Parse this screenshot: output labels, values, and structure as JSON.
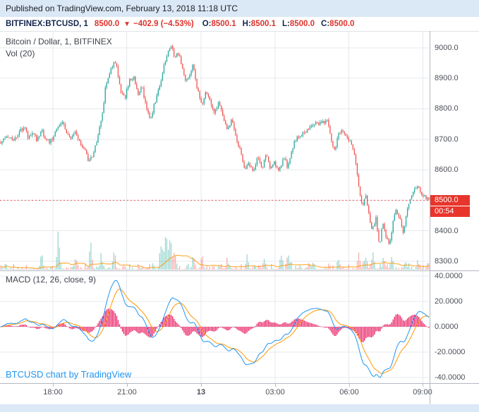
{
  "banner": {
    "published_text": "Published on TradingView.com, February 13, 2018 11:18 UTC"
  },
  "symbol_bar": {
    "symbol": "BITFINEX:BTCUSD, 1",
    "last_price": "8500.0",
    "change_arrow": "▼",
    "change": "−402.9 (−4.53%)",
    "ohlc": [
      {
        "label": "O:",
        "value": "8500.1"
      },
      {
        "label": "H:",
        "value": "8500.1"
      },
      {
        "label": "L:",
        "value": "8500.0"
      },
      {
        "label": "C:",
        "value": "8500.0"
      }
    ]
  },
  "main_pane": {
    "legend_line1": "Bitcoin / Dollar, 1, BITFINEX",
    "legend_line2": "Vol (20)",
    "last_price_tag": "8500.0",
    "countdown_tag": "00:54",
    "price_axis": [
      {
        "v": 9000,
        "label": "9000.0"
      },
      {
        "v": 8900,
        "label": "8900.0"
      },
      {
        "v": 8800,
        "label": "8800.0"
      },
      {
        "v": 8700,
        "label": "8700.0"
      },
      {
        "v": 8600,
        "label": "8600.0"
      },
      {
        "v": 8500,
        "label": "8500.0"
      },
      {
        "v": 8400,
        "label": "8400.0"
      },
      {
        "v": 8300,
        "label": "8300.0"
      }
    ]
  },
  "macd_pane": {
    "legend": "MACD (12, 26, close, 9)",
    "watermark_link": "BTCUSD chart by TradingView",
    "axis": [
      {
        "v": 40,
        "label": "40.0000"
      },
      {
        "v": 20,
        "label": "20.0000"
      },
      {
        "v": 0,
        "label": "0.0000"
      },
      {
        "v": -20,
        "label": "-20.0000"
      },
      {
        "v": -40,
        "label": "-40.0000"
      }
    ]
  },
  "time_axis": {
    "labels": [
      {
        "text": "18:00",
        "pos": 0.123,
        "bold": false
      },
      {
        "text": "21:00",
        "pos": 0.295,
        "bold": false
      },
      {
        "text": "13",
        "pos": 0.468,
        "bold": true
      },
      {
        "text": "03:00",
        "pos": 0.64,
        "bold": false
      },
      {
        "text": "06:00",
        "pos": 0.812,
        "bold": false
      },
      {
        "text": "09:00",
        "pos": 0.984,
        "bold": false
      }
    ]
  },
  "colors": {
    "banner_bg": "#dbe8f6",
    "navy": "#13264d",
    "red": "#dd342c",
    "link_blue": "#2196f3",
    "tag_red": "#e8352c",
    "axis_text": "#4b5058",
    "legend_text": "#3f434c"
  },
  "chart_data": {
    "type": "candlestick",
    "symbol": "BITFINEX:BTCUSD",
    "interval_minutes": 1,
    "title": "Bitcoin / Dollar, 1, BITFINEX",
    "last_price": 8500.0,
    "change": -402.9,
    "change_pct": -4.53,
    "ohlc_current": {
      "open": 8500.1,
      "high": 8500.1,
      "low": 8500.0,
      "close": 8500.0
    },
    "candle_count": 300,
    "price_range": [
      8270,
      9055
    ],
    "price_gridlines": [
      9000,
      8900,
      8800,
      8700,
      8600,
      8500,
      8400,
      8300
    ],
    "close_path_anchors": [
      [
        0.0,
        8690
      ],
      [
        0.015,
        8706
      ],
      [
        0.03,
        8694
      ],
      [
        0.045,
        8726
      ],
      [
        0.055,
        8741
      ],
      [
        0.065,
        8702
      ],
      [
        0.075,
        8716
      ],
      [
        0.085,
        8697
      ],
      [
        0.095,
        8731
      ],
      [
        0.105,
        8702
      ],
      [
        0.115,
        8691
      ],
      [
        0.125,
        8712
      ],
      [
        0.135,
        8747
      ],
      [
        0.145,
        8756
      ],
      [
        0.155,
        8722
      ],
      [
        0.165,
        8701
      ],
      [
        0.175,
        8721
      ],
      [
        0.185,
        8692
      ],
      [
        0.195,
        8666
      ],
      [
        0.205,
        8631
      ],
      [
        0.215,
        8646
      ],
      [
        0.225,
        8696
      ],
      [
        0.235,
        8762
      ],
      [
        0.245,
        8872
      ],
      [
        0.255,
        8922
      ],
      [
        0.265,
        8951
      ],
      [
        0.272,
        8931
      ],
      [
        0.28,
        8852
      ],
      [
        0.29,
        8836
      ],
      [
        0.3,
        8891
      ],
      [
        0.31,
        8906
      ],
      [
        0.32,
        8846
      ],
      [
        0.33,
        8871
      ],
      [
        0.34,
        8801
      ],
      [
        0.35,
        8766
      ],
      [
        0.36,
        8821
      ],
      [
        0.37,
        8871
      ],
      [
        0.38,
        8931
      ],
      [
        0.39,
        8991
      ],
      [
        0.398,
        9011
      ],
      [
        0.406,
        8966
      ],
      [
        0.414,
        8986
      ],
      [
        0.422,
        8951
      ],
      [
        0.43,
        8896
      ],
      [
        0.44,
        8901
      ],
      [
        0.448,
        8946
      ],
      [
        0.46,
        8861
      ],
      [
        0.47,
        8806
      ],
      [
        0.48,
        8856
      ],
      [
        0.49,
        8816
      ],
      [
        0.5,
        8786
      ],
      [
        0.51,
        8821
      ],
      [
        0.52,
        8766
      ],
      [
        0.53,
        8726
      ],
      [
        0.54,
        8766
      ],
      [
        0.55,
        8706
      ],
      [
        0.56,
        8656
      ],
      [
        0.57,
        8606
      ],
      [
        0.58,
        8626
      ],
      [
        0.59,
        8586
      ],
      [
        0.6,
        8641
      ],
      [
        0.61,
        8601
      ],
      [
        0.62,
        8651
      ],
      [
        0.63,
        8601
      ],
      [
        0.64,
        8626
      ],
      [
        0.65,
        8591
      ],
      [
        0.66,
        8646
      ],
      [
        0.67,
        8606
      ],
      [
        0.68,
        8666
      ],
      [
        0.69,
        8706
      ],
      [
        0.705,
        8721
      ],
      [
        0.72,
        8736
      ],
      [
        0.735,
        8751
      ],
      [
        0.75,
        8756
      ],
      [
        0.762,
        8761
      ],
      [
        0.772,
        8701
      ],
      [
        0.78,
        8661
      ],
      [
        0.79,
        8721
      ],
      [
        0.8,
        8731
      ],
      [
        0.81,
        8701
      ],
      [
        0.82,
        8681
      ],
      [
        0.828,
        8641
      ],
      [
        0.836,
        8551
      ],
      [
        0.844,
        8481
      ],
      [
        0.852,
        8521
      ],
      [
        0.86,
        8451
      ],
      [
        0.868,
        8401
      ],
      [
        0.876,
        8441
      ],
      [
        0.884,
        8351
      ],
      [
        0.892,
        8421
      ],
      [
        0.9,
        8381
      ],
      [
        0.908,
        8351
      ],
      [
        0.916,
        8431
      ],
      [
        0.924,
        8466
      ],
      [
        0.932,
        8441
      ],
      [
        0.94,
        8396
      ],
      [
        0.95,
        8471
      ],
      [
        0.96,
        8521
      ],
      [
        0.972,
        8551
      ],
      [
        0.984,
        8516
      ],
      [
        1.0,
        8500
      ]
    ],
    "volume_ma_length": 20,
    "volume_spikes": [
      [
        0.095,
        30
      ],
      [
        0.135,
        62
      ],
      [
        0.175,
        20
      ],
      [
        0.21,
        42
      ],
      [
        0.235,
        25
      ],
      [
        0.265,
        30
      ],
      [
        0.375,
        55
      ],
      [
        0.385,
        72
      ],
      [
        0.395,
        60
      ],
      [
        0.405,
        38
      ],
      [
        0.45,
        22
      ],
      [
        0.47,
        18
      ],
      [
        0.53,
        15
      ],
      [
        0.575,
        20
      ],
      [
        0.615,
        16
      ],
      [
        0.655,
        26
      ],
      [
        0.672,
        34
      ],
      [
        0.73,
        16
      ],
      [
        0.79,
        14
      ],
      [
        0.836,
        26
      ],
      [
        0.852,
        20
      ],
      [
        0.87,
        18
      ],
      [
        0.895,
        22
      ],
      [
        0.912,
        14
      ],
      [
        0.945,
        16
      ],
      [
        0.975,
        12
      ]
    ],
    "macd": {
      "fast": 12,
      "slow": 26,
      "source": "close",
      "smoothing": 9,
      "gridlines": [
        40,
        20,
        0,
        -20,
        -40
      ],
      "axis_range": [
        -44.44,
        43.89
      ]
    },
    "colors": {
      "up": "#26a69a",
      "down": "#ef5350",
      "grid": "#e6e8ec",
      "vol_ma": "#ff9800",
      "macd_line": "#2196f3",
      "signal_line": "#ff9800",
      "histogram": "#e91e63"
    }
  }
}
